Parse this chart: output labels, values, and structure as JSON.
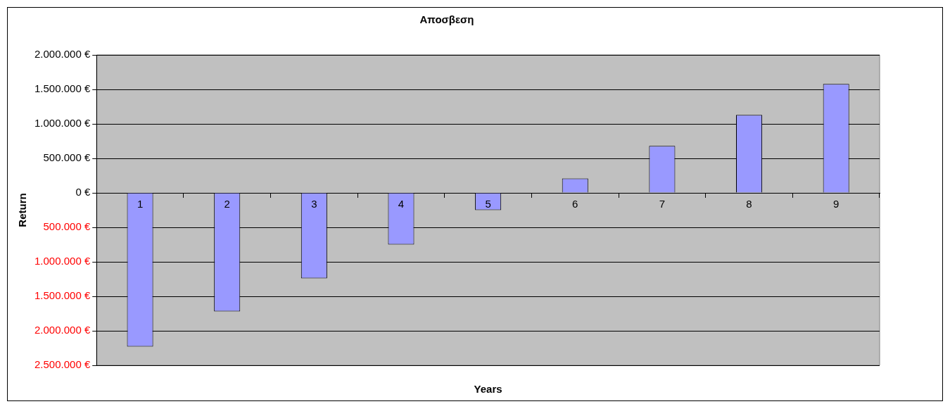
{
  "chart_data": {
    "type": "bar",
    "title": "Αποσβεση",
    "xlabel": "Years",
    "ylabel": "Return",
    "categories": [
      "1",
      "2",
      "3",
      "4",
      "5",
      "6",
      "7",
      "8",
      "9"
    ],
    "series": [
      {
        "color": "#9999ff",
        "values": [
          -2230000,
          -1720000,
          -1240000,
          -750000,
          -250000,
          210000,
          680000,
          1130000,
          1580000
        ]
      }
    ],
    "ylim": [
      -2500000,
      2000000
    ],
    "yticks": [
      {
        "value": 2000000,
        "label": "2.000.000 €"
      },
      {
        "value": 1500000,
        "label": "1.500.000 €"
      },
      {
        "value": 1000000,
        "label": "1.000.000 €"
      },
      {
        "value": 500000,
        "label": "500.000 €"
      },
      {
        "value": 0,
        "label": "0 €"
      },
      {
        "value": -500000,
        "label": "500.000 €"
      },
      {
        "value": -1000000,
        "label": "1.000.000 €"
      },
      {
        "value": -1500000,
        "label": "1.500.000 €"
      },
      {
        "value": -2000000,
        "label": "2.000.000 €"
      },
      {
        "value": -2500000,
        "label": "2.500.000 €"
      }
    ],
    "grid": "y",
    "legend": false
  }
}
